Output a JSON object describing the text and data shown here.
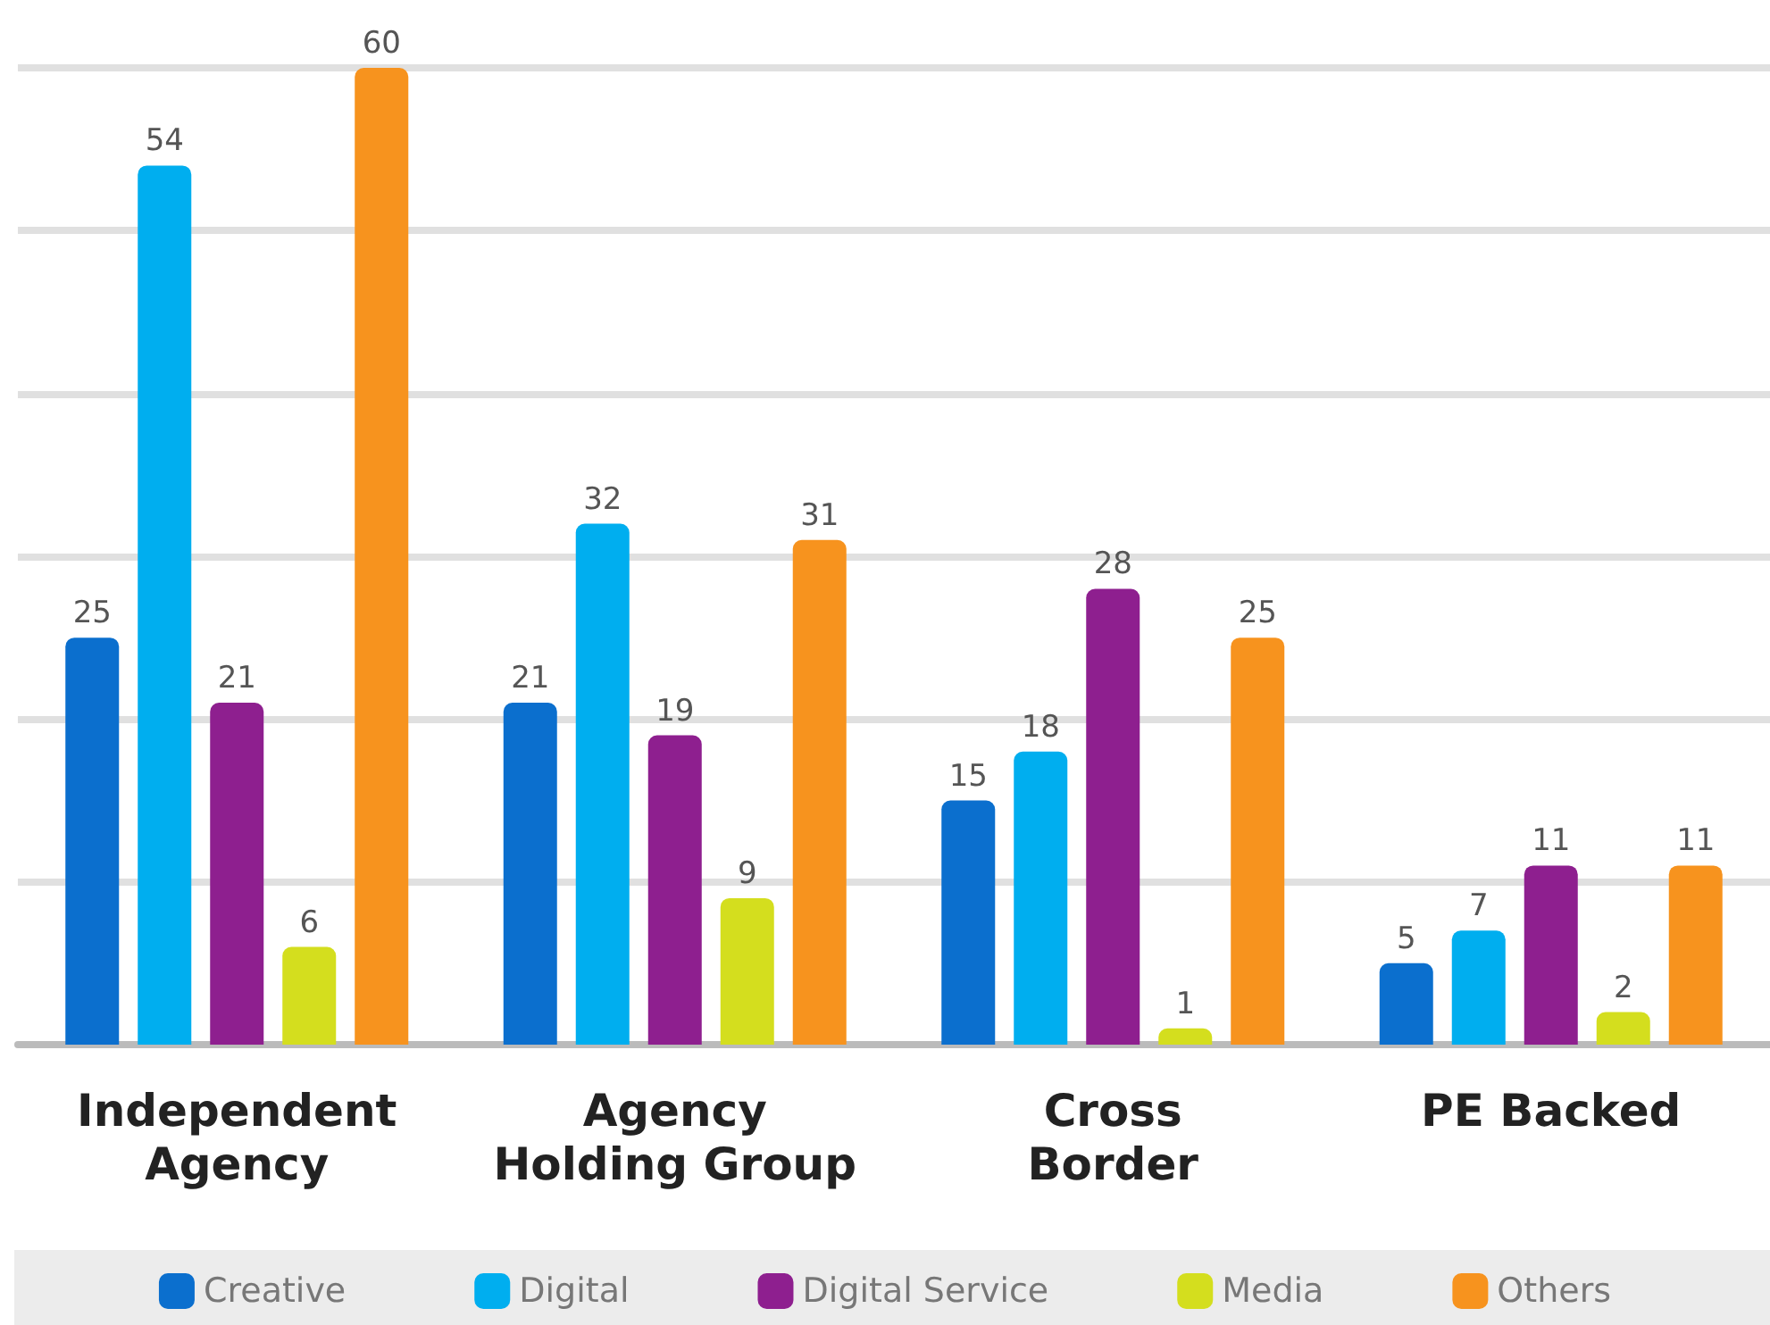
{
  "chart_data": {
    "type": "bar",
    "categories": [
      "Independent\nAgency",
      "Agency\nHolding Group",
      "Cross\nBorder",
      "PE Backed"
    ],
    "series": [
      {
        "name": "Creative",
        "color": "#0b6fce",
        "values": [
          25,
          21,
          15,
          5
        ]
      },
      {
        "name": "Digital",
        "color": "#00aeef",
        "values": [
          54,
          32,
          18,
          7
        ]
      },
      {
        "name": "Digital Service",
        "color": "#8e1f8f",
        "values": [
          21,
          19,
          28,
          11
        ]
      },
      {
        "name": "Media",
        "color": "#d4de1e",
        "values": [
          6,
          9,
          1,
          2
        ]
      },
      {
        "name": "Others",
        "color": "#f7931e",
        "values": [
          60,
          31,
          25,
          11
        ]
      }
    ],
    "ylim": [
      0,
      60
    ],
    "yticks": [
      {
        "value": 0,
        "label": null
      },
      {
        "value": 10,
        "label": null
      },
      {
        "value": 20,
        "label": null
      },
      {
        "value": 30,
        "label": null
      },
      {
        "value": 40,
        "label": null
      },
      {
        "value": 50,
        "label": null
      },
      {
        "value": 60,
        "label": null
      }
    ],
    "tick_labels": "x",
    "grid": "y",
    "legend": "bottom",
    "data_labels": true
  }
}
